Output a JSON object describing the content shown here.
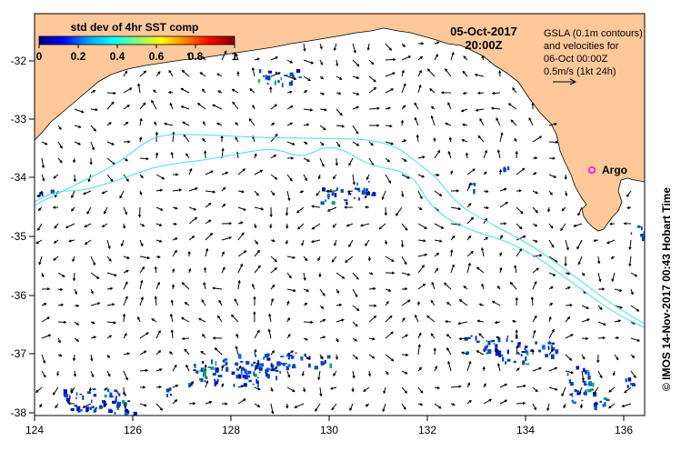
{
  "map": {
    "colorbar": {
      "title": "std dev of 4hr SST comp",
      "ticks": [
        "0",
        "0.2",
        "0.4",
        "0.6",
        "0.8",
        "1"
      ],
      "colormap": [
        "#00007f",
        "#0000ff",
        "#00a0ff",
        "#00ffff",
        "#7fff7f",
        "#ffff00",
        "#ff8000",
        "#ff0000",
        "#7f0000"
      ]
    },
    "date": "05-Oct-2017",
    "time": "20:00Z",
    "legend": {
      "line1": "GSLA (0.1m contours)",
      "line2": "and velocities for",
      "line3": "06-Oct 00:00Z",
      "scale": "0.5m/s (1kt 24h)"
    },
    "argo_label": "Argo",
    "credit": "© IMOS 14-Nov-2017 00:43 Hobart Time",
    "axes": {
      "lon_ticks": [
        "124",
        "126",
        "128",
        "130",
        "132",
        "134",
        "136"
      ],
      "lat_ticks": [
        "-32",
        "-33",
        "-34",
        "-35",
        "-36",
        "-37",
        "-38"
      ]
    },
    "colors": {
      "land": "#fec89a",
      "contour": "#40e0f0",
      "argo": "#ff00ff",
      "sst_patch": "#0044cc"
    }
  }
}
